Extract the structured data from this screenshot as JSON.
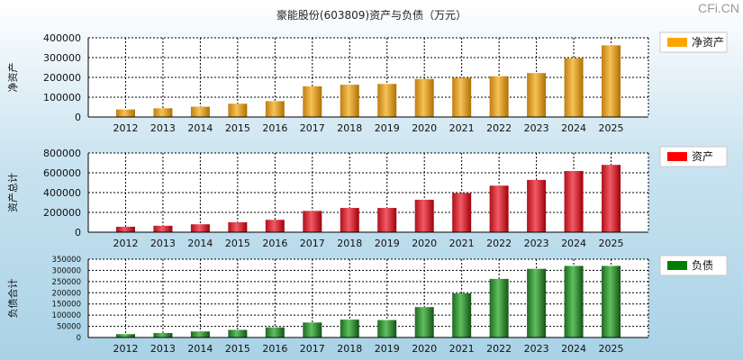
{
  "title": "豪能股份(603809)资产与负债（万元）",
  "watermark": "CFi.CN",
  "chart_data": [
    {
      "type": "bar",
      "title": "豪能股份(603809)资产与负债（万元）",
      "ylabel": "净资产",
      "legend": "净资产",
      "legend_color": "#ffa500",
      "colors": [
        "#c07e10",
        "#f6c257",
        "#b06f00"
      ],
      "ylim": [
        0,
        400000
      ],
      "yticks": [
        0,
        100000,
        200000,
        300000,
        400000
      ],
      "categories": [
        "2012",
        "2013",
        "2014",
        "2015",
        "2016",
        "2017",
        "2018",
        "2019",
        "2020",
        "2021",
        "2022",
        "2023",
        "2024",
        "2025"
      ],
      "values": [
        38000,
        44000,
        52000,
        67000,
        80000,
        155000,
        163000,
        167000,
        192000,
        198000,
        206000,
        222000,
        297000,
        362000
      ]
    },
    {
      "type": "bar",
      "ylabel": "资产总计",
      "legend": "资产",
      "legend_color": "#ff0000",
      "colors": [
        "#b0101a",
        "#f25a66",
        "#a0000a"
      ],
      "ylim": [
        0,
        800000
      ],
      "yticks": [
        0,
        200000,
        400000,
        600000,
        800000
      ],
      "categories": [
        "2012",
        "2013",
        "2014",
        "2015",
        "2016",
        "2017",
        "2018",
        "2019",
        "2020",
        "2021",
        "2022",
        "2023",
        "2024",
        "2025"
      ],
      "values": [
        55000,
        65000,
        80000,
        100000,
        125000,
        215000,
        245000,
        245000,
        328000,
        395000,
        470000,
        528000,
        618000,
        680000
      ]
    },
    {
      "type": "bar",
      "ylabel": "负债合计",
      "legend": "负债",
      "legend_color": "#008000",
      "colors": [
        "#1e6a1e",
        "#5fbf5f",
        "#145214"
      ],
      "ylim": [
        0,
        350000
      ],
      "yticks": [
        0,
        50000,
        100000,
        150000,
        200000,
        250000,
        300000,
        350000
      ],
      "categories": [
        "2012",
        "2013",
        "2014",
        "2015",
        "2016",
        "2017",
        "2018",
        "2019",
        "2020",
        "2021",
        "2022",
        "2023",
        "2024",
        "2025"
      ],
      "values": [
        15000,
        20000,
        27000,
        34000,
        45000,
        67000,
        80000,
        78000,
        136000,
        197000,
        262000,
        307000,
        320000,
        320000
      ]
    }
  ]
}
